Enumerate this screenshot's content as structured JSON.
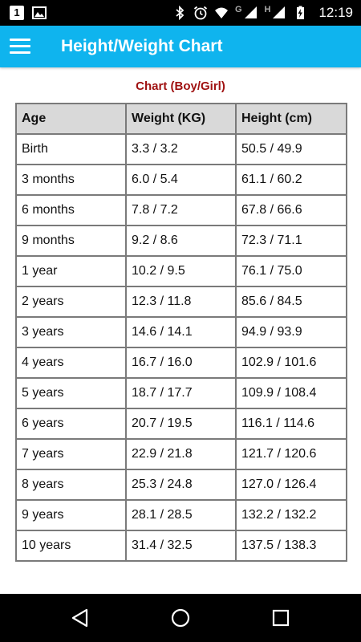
{
  "status_bar": {
    "time": "12:19",
    "left_icons": [
      "sim-1-icon",
      "image-icon"
    ],
    "right_icons": [
      "bluetooth-icon",
      "alarm-icon",
      "wifi-icon",
      "signal-g-icon",
      "signal-h-icon",
      "battery-charging-icon"
    ],
    "sim1_label": "1",
    "net_g": "G",
    "net_h": "H"
  },
  "app_bar": {
    "title": "Height/Weight Chart",
    "menu_icon": "hamburger-menu-icon",
    "color": "#0fb4ee"
  },
  "chart": {
    "caption": "Chart (Boy/Girl)",
    "caption_color": "#a01212",
    "columns": [
      "Age",
      "Weight (KG)",
      "Height (cm)"
    ],
    "rows": [
      [
        "Birth",
        "3.3 / 3.2",
        "50.5 / 49.9"
      ],
      [
        "3 months",
        "6.0 / 5.4",
        "61.1 / 60.2"
      ],
      [
        "6 months",
        "7.8 / 7.2",
        "67.8 / 66.6"
      ],
      [
        "9 months",
        "9.2 / 8.6",
        "72.3 / 71.1"
      ],
      [
        "1 year",
        "10.2 / 9.5",
        "76.1 / 75.0"
      ],
      [
        "2 years",
        "12.3 / 11.8",
        "85.6 / 84.5"
      ],
      [
        "3 years",
        "14.6 / 14.1",
        "94.9 / 93.9"
      ],
      [
        "4 years",
        "16.7 / 16.0",
        "102.9 / 101.6"
      ],
      [
        "5 years",
        "18.7 / 17.7",
        "109.9 / 108.4"
      ],
      [
        "6 years",
        "20.7 / 19.5",
        "116.1 / 114.6"
      ],
      [
        "7 years",
        "22.9 / 21.8",
        "121.7 / 120.6"
      ],
      [
        "8 years",
        "25.3 / 24.8",
        "127.0 / 126.4"
      ],
      [
        "9 years",
        "28.1 / 28.5",
        "132.2 / 132.2"
      ],
      [
        "10 years",
        "31.4 / 32.5",
        "137.5 / 138.3"
      ]
    ]
  },
  "nav_bar": {
    "buttons": [
      "back-icon",
      "home-icon",
      "recents-icon"
    ]
  }
}
